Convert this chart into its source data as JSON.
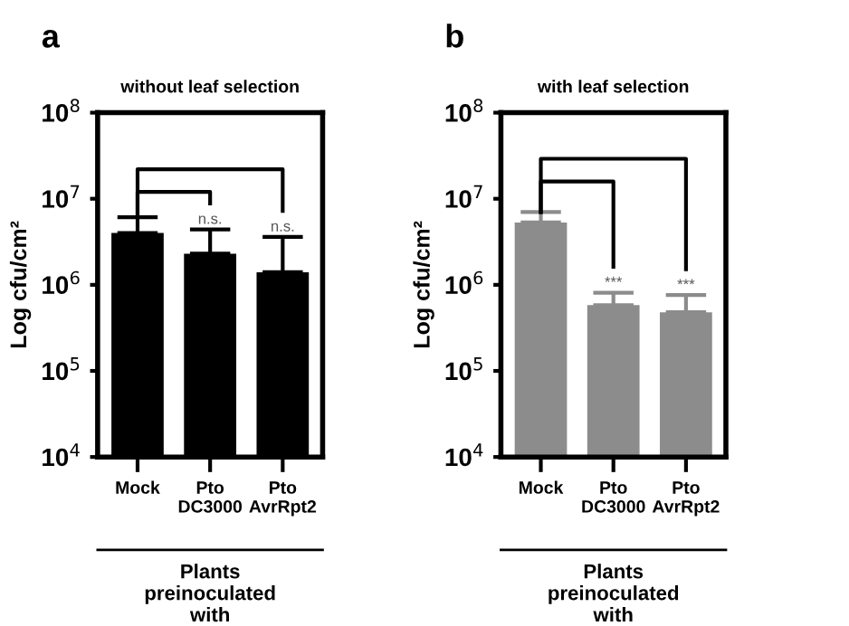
{
  "chart_data": [
    {
      "type": "bar",
      "title": "without leaf selection",
      "ylabel": "Log cfu/cm²",
      "xlabel": "Plants\npreinoculated\nwith",
      "categories": [
        "Mock",
        "Pto\nDC3000",
        "Pto\nAvrRpt2"
      ],
      "values": [
        4000000,
        2300000,
        1400000
      ],
      "errors": [
        [
          4000000,
          6100000
        ],
        [
          2300000,
          4400000
        ],
        [
          1400000,
          3600000
        ]
      ],
      "color": "#000000",
      "log": true,
      "ylim": [
        10000,
        100000000
      ],
      "yticks": [
        {
          "value": 10000,
          "label": "10$^{4}$"
        },
        {
          "value": 100000,
          "label": "10$^{5}$"
        },
        {
          "value": 1000000,
          "label": "10$^{6}$"
        },
        {
          "value": 10000000,
          "label": "10$^{7}$"
        },
        {
          "value": 100000000,
          "label": "10$^{8}$"
        }
      ],
      "grid": false,
      "annotations": [
        "a",
        {
          "text": "n.s.",
          "x": "Pto\nDC3000",
          "y": 4400000
        },
        {
          "text": "n.s.",
          "x": "Pto\nAvrRpt2",
          "y": 3600000
        }
      ]
    },
    {
      "type": "bar",
      "title": "with leaf selection",
      "ylabel": "Log cfu/cm²",
      "xlabel": "Plants\npreinoculated\nwith",
      "categories": [
        "Mock",
        "Pto\nDC3000",
        "Pto\nAvrRpt2"
      ],
      "values": [
        5300000,
        580000,
        480000
      ],
      "errors": [
        [
          5300000,
          7000000
        ],
        [
          580000,
          810000
        ],
        [
          480000,
          760000
        ]
      ],
      "color": "#8c8c8c",
      "log": true,
      "ylim": [
        10000,
        100000000
      ],
      "yticks": [
        {
          "value": 10000,
          "label": "10$^{4}$"
        },
        {
          "value": 100000,
          "label": "10$^{5}$"
        },
        {
          "value": 1000000,
          "label": "10$^{6}$"
        },
        {
          "value": 10000000,
          "label": "10$^{7}$"
        },
        {
          "value": 100000000,
          "label": "10$^{8}$"
        }
      ],
      "grid": false,
      "annotations": [
        "b",
        {
          "text": "***",
          "x": "Pto\nDC3000",
          "y": 810000
        },
        {
          "text": "***",
          "x": "Pto\nAvrRpt2",
          "y": 760000
        }
      ]
    }
  ]
}
